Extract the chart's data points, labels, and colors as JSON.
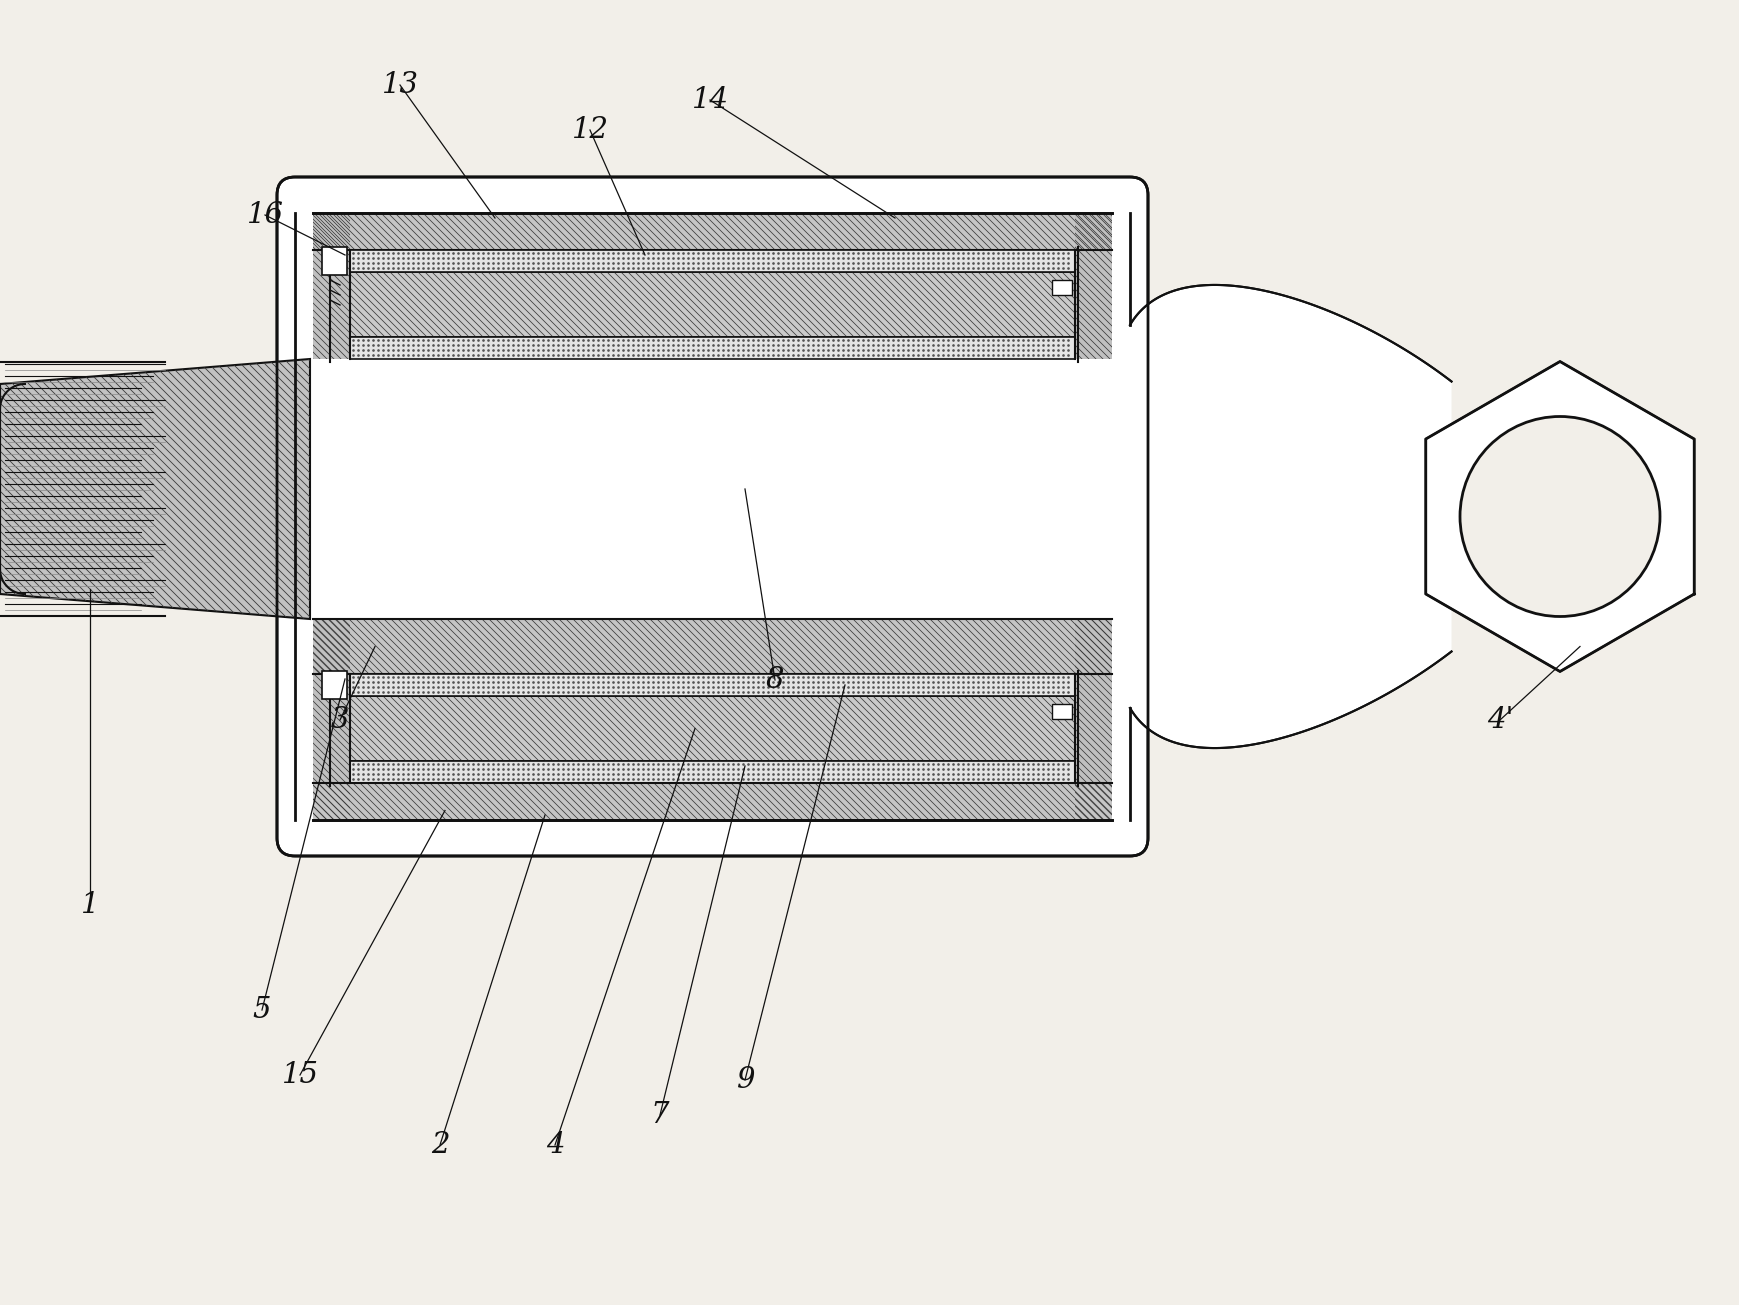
{
  "bg_color": "#f2efe9",
  "lc": "#111111",
  "hatch_bg": "#c8c8c8",
  "rubber_bg": "#d0d0d0",
  "dot_bg": "#e5e5e5",
  "white": "#ffffff",
  "shaft_bg": "#c0c0c0"
}
